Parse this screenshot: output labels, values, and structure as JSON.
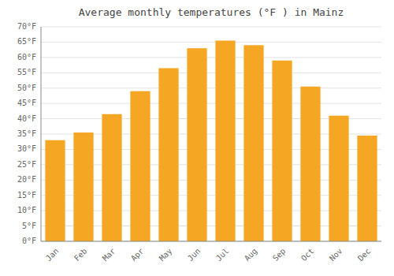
{
  "chart_data": {
    "type": "bar",
    "title": "Average monthly temperatures (°F ) in Mainz",
    "categories": [
      "Jan",
      "Feb",
      "Mar",
      "Apr",
      "May",
      "Jun",
      "Jul",
      "Aug",
      "Sep",
      "Oct",
      "Nov",
      "Dec"
    ],
    "values": [
      33,
      35.5,
      41.5,
      49,
      56.5,
      63,
      65.5,
      64,
      59,
      50.5,
      41,
      34.5
    ],
    "color": "#F5A623",
    "ylim": [
      0,
      70
    ],
    "yticks": [
      {
        "value": 0,
        "label": "0°F"
      },
      {
        "value": 5,
        "label": "5°F"
      },
      {
        "value": 10,
        "label": "10°F"
      },
      {
        "value": 15,
        "label": "15°F"
      },
      {
        "value": 20,
        "label": "20°F"
      },
      {
        "value": 25,
        "label": "25°F"
      },
      {
        "value": 30,
        "label": "30°F"
      },
      {
        "value": 35,
        "label": "35°F"
      },
      {
        "value": 40,
        "label": "40°F"
      },
      {
        "value": 45,
        "label": "45°F"
      },
      {
        "value": 50,
        "label": "50°F"
      },
      {
        "value": 55,
        "label": "55°F"
      },
      {
        "value": 60,
        "label": "60°F"
      },
      {
        "value": 65,
        "label": "65°F"
      },
      {
        "value": 70,
        "label": "70°F"
      }
    ],
    "grid": true
  }
}
